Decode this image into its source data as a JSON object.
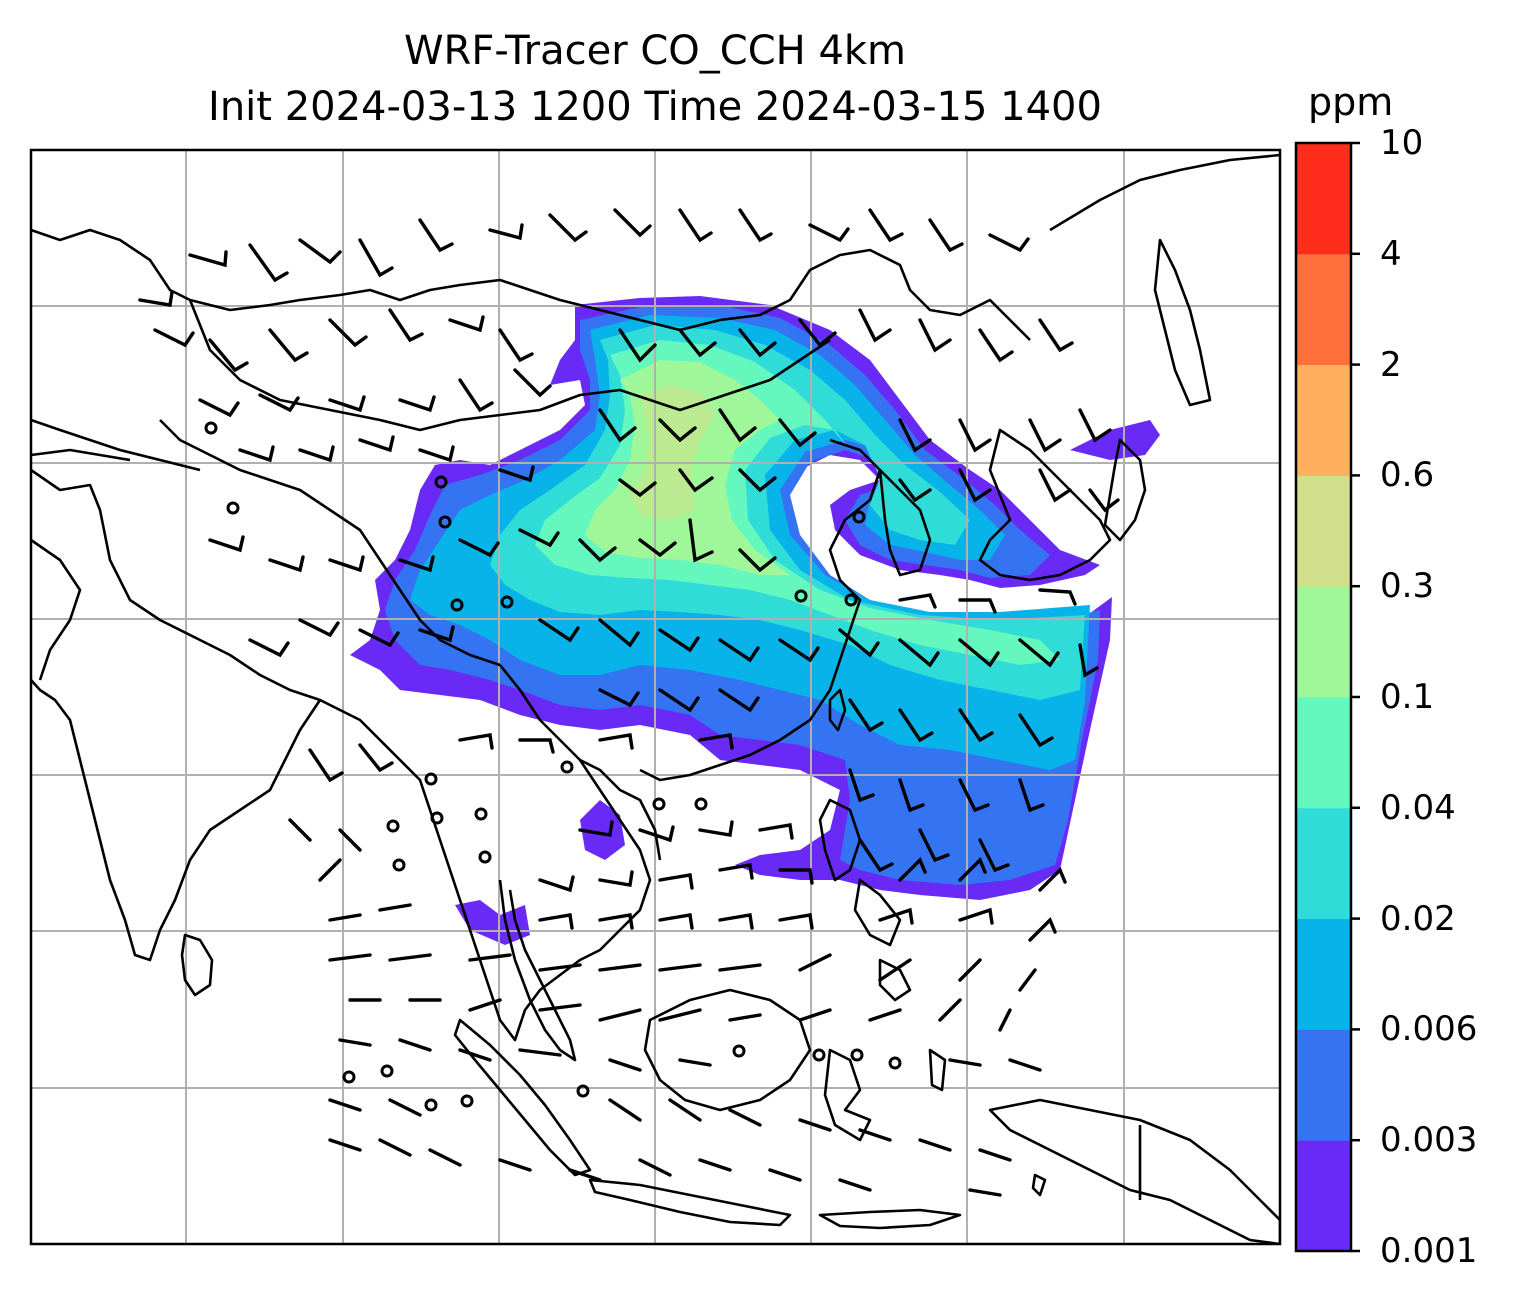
{
  "title": {
    "line1": "WRF-Tracer CO_CCH 4km",
    "line2": "Init 2024-03-13 1200 Time 2024-03-15 1400"
  },
  "colorbar": {
    "unit": "ppm",
    "levels": [
      "0.001",
      "0.003",
      "0.006",
      "0.02",
      "0.04",
      "0.1",
      "0.3",
      "0.6",
      "2",
      "4",
      "10"
    ],
    "colors": [
      "#6a2af6",
      "#3474f2",
      "#08b3e9",
      "#2fdcd8",
      "#64f7be",
      "#a0f79a",
      "#d2e08b",
      "#feb05f",
      "#ff703d",
      "#ff2d1c"
    ]
  },
  "map": {
    "gridline_color": "#b0b0b0",
    "coastline_color": "#000000",
    "wind_barb_color": "#000000",
    "tracer_plume_levels": [
      "0.001",
      "0.003",
      "0.006",
      "0.02",
      "0.04",
      "0.1"
    ]
  }
}
